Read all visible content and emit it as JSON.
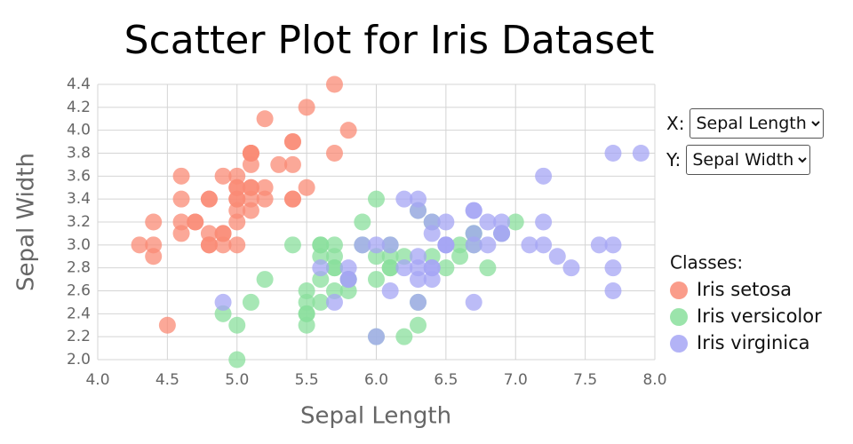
{
  "chart_data": {
    "type": "scatter",
    "title": "Scatter Plot for Iris Dataset",
    "x_label": "Sepal Length",
    "y_label": "Sepal Width",
    "xlim": [
      4.0,
      8.0
    ],
    "ylim": [
      2.0,
      4.4
    ],
    "xticks": [
      {
        "value": 4,
        "label": "4.0"
      },
      4.5,
      {
        "value": 5,
        "label": "5.0"
      },
      5.5,
      {
        "value": 6,
        "label": "6.0"
      },
      6.5,
      {
        "value": 7,
        "label": "7.0"
      },
      7.5,
      {
        "value": 8,
        "label": "8.0"
      }
    ],
    "yticks": [
      {
        "value": 2,
        "label": "2.0"
      },
      2.2,
      2.4,
      2.6,
      2.8,
      {
        "value": 3,
        "label": "3.0"
      },
      3.2,
      3.4,
      3.6,
      3.8,
      {
        "value": 4,
        "label": "4.0"
      },
      4.2,
      4.4
    ],
    "grid": true,
    "legend_title": "Classes:",
    "series": [
      {
        "name": "Iris setosa",
        "color": "#f98b76",
        "x": [
          5.1,
          4.9,
          4.7,
          4.6,
          5.0,
          5.4,
          4.6,
          5.0,
          4.4,
          4.9,
          5.4,
          4.8,
          4.8,
          4.3,
          5.8,
          5.7,
          5.4,
          5.1,
          5.7,
          5.1,
          5.4,
          5.1,
          4.6,
          5.1,
          4.8,
          5.0,
          5.0,
          5.2,
          5.2,
          4.7,
          4.8,
          5.4,
          5.2,
          5.5,
          4.9,
          5.0,
          5.5,
          4.9,
          4.4,
          5.1,
          5.0,
          4.5,
          4.4,
          5.0,
          5.1,
          4.8,
          5.1,
          4.6,
          5.3,
          5.0
        ],
        "y": [
          3.5,
          3.0,
          3.2,
          3.1,
          3.6,
          3.9,
          3.4,
          3.4,
          2.9,
          3.1,
          3.7,
          3.4,
          3.0,
          3.0,
          4.0,
          4.4,
          3.9,
          3.5,
          3.8,
          3.8,
          3.4,
          3.7,
          3.6,
          3.3,
          3.4,
          3.0,
          3.4,
          3.5,
          3.4,
          3.2,
          3.1,
          3.4,
          4.1,
          4.2,
          3.1,
          3.2,
          3.5,
          3.6,
          3.0,
          3.4,
          3.5,
          2.3,
          3.2,
          3.5,
          3.8,
          3.0,
          3.8,
          3.2,
          3.7,
          3.3
        ]
      },
      {
        "name": "Iris versicolor",
        "color": "#8adf9c",
        "x": [
          7.0,
          6.4,
          6.9,
          5.5,
          6.5,
          5.7,
          6.3,
          4.9,
          6.6,
          5.2,
          5.0,
          5.9,
          6.0,
          6.1,
          5.6,
          6.7,
          5.6,
          5.8,
          6.2,
          5.6,
          5.9,
          6.1,
          6.3,
          6.1,
          6.4,
          6.6,
          6.8,
          6.7,
          6.0,
          5.7,
          5.5,
          5.5,
          5.8,
          6.0,
          5.4,
          6.0,
          6.7,
          6.3,
          5.6,
          5.5,
          5.5,
          6.1,
          5.8,
          5.0,
          5.6,
          5.7,
          5.7,
          6.2,
          5.1,
          5.7
        ],
        "y": [
          3.2,
          3.2,
          3.1,
          2.3,
          2.8,
          2.8,
          3.3,
          2.4,
          2.9,
          2.7,
          2.0,
          3.0,
          2.2,
          2.9,
          2.9,
          3.1,
          3.0,
          2.7,
          2.2,
          2.5,
          3.2,
          2.8,
          2.5,
          2.8,
          2.9,
          3.0,
          2.8,
          3.0,
          2.9,
          2.6,
          2.4,
          2.4,
          2.7,
          2.7,
          3.0,
          3.4,
          3.1,
          2.3,
          3.0,
          2.5,
          2.6,
          3.0,
          2.6,
          2.3,
          2.7,
          3.0,
          2.9,
          2.9,
          2.5,
          2.8
        ]
      },
      {
        "name": "Iris virginica",
        "color": "#a6a6f4",
        "x": [
          6.3,
          5.8,
          7.1,
          6.3,
          6.5,
          7.6,
          4.9,
          7.3,
          6.7,
          7.2,
          6.5,
          6.4,
          6.8,
          5.7,
          5.8,
          6.4,
          6.5,
          7.7,
          7.7,
          6.0,
          6.9,
          5.6,
          7.7,
          6.3,
          6.7,
          7.2,
          6.2,
          6.1,
          6.4,
          7.2,
          7.4,
          7.9,
          6.4,
          6.3,
          6.1,
          7.7,
          6.3,
          6.4,
          6.0,
          6.9,
          6.7,
          6.9,
          5.8,
          6.8,
          6.7,
          6.7,
          6.3,
          6.5,
          6.2,
          5.9
        ],
        "y": [
          3.3,
          2.7,
          3.0,
          2.9,
          3.0,
          3.0,
          2.5,
          2.9,
          2.5,
          3.6,
          3.2,
          2.7,
          3.0,
          2.5,
          2.8,
          3.2,
          3.0,
          3.8,
          2.6,
          2.2,
          3.2,
          2.8,
          2.8,
          2.7,
          3.3,
          3.2,
          2.8,
          3.0,
          2.8,
          3.0,
          2.8,
          3.8,
          2.8,
          2.8,
          2.6,
          3.0,
          3.4,
          3.1,
          3.0,
          3.1,
          3.1,
          3.1,
          2.7,
          3.2,
          3.3,
          3.0,
          2.5,
          3.0,
          3.4,
          3.0
        ]
      }
    ]
  },
  "controls": {
    "x_label": "X:",
    "x_selected": "Sepal Length",
    "y_label": "Y:",
    "y_selected": "Sepal Width"
  }
}
